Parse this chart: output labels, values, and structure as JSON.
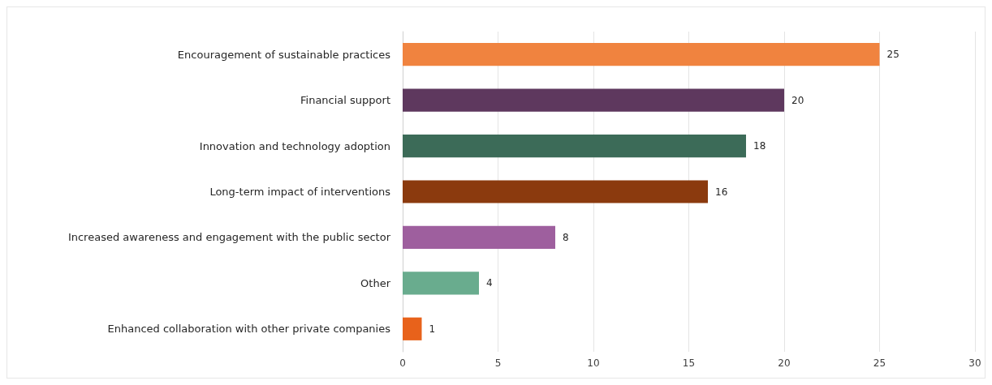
{
  "chart_data": {
    "type": "bar",
    "orientation": "horizontal",
    "categories": [
      "Encouragement of sustainable practices",
      "Financial support",
      "Innovation and technology adoption",
      "Long-term impact of interventions",
      "Increased awareness and engagement with the public sector",
      "Other",
      "Enhanced collaboration with other private companies"
    ],
    "values": [
      25,
      20,
      18,
      16,
      8,
      4,
      1
    ],
    "colors": [
      "#f0833f",
      "#5e385e",
      "#3c6b58",
      "#8b3a0e",
      "#9e5f9e",
      "#69ac8e",
      "#e8621b"
    ],
    "xlim": [
      0,
      30
    ],
    "xticks": [
      0,
      5,
      10,
      15,
      20,
      25,
      30
    ],
    "grid": "x",
    "data_labels": true
  }
}
